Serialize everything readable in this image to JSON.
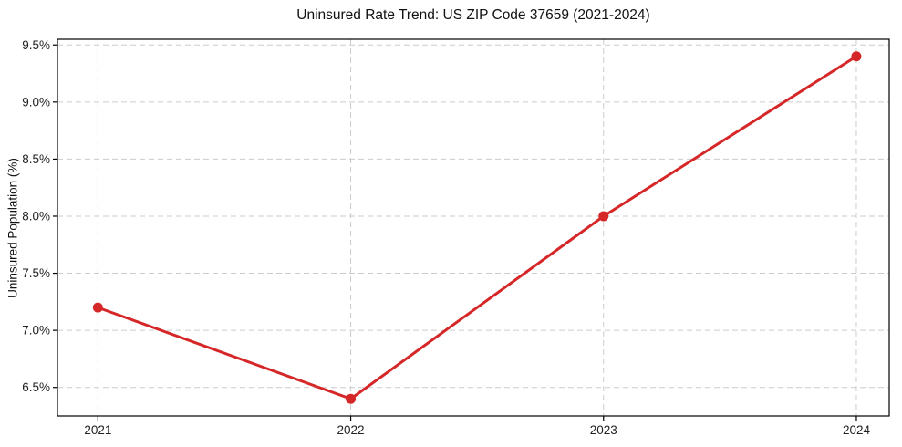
{
  "chart_data": {
    "type": "line",
    "title": "Uninsured Rate Trend: US ZIP Code 37659 (2021-2024)",
    "xlabel": "",
    "ylabel": "Uninsured Population (%)",
    "x": [
      2021,
      2022,
      2023,
      2024
    ],
    "values": [
      7.2,
      6.4,
      8.0,
      9.4
    ],
    "xtick_labels": [
      "2021",
      "2022",
      "2023",
      "2024"
    ],
    "ytick_values": [
      6.5,
      7.0,
      7.5,
      8.0,
      8.5,
      9.0,
      9.5
    ],
    "ytick_labels": [
      "6.5%",
      "7.0%",
      "7.5%",
      "8.0%",
      "8.5%",
      "9.0%",
      "9.5%"
    ],
    "xlim": [
      2020.84,
      2024.13
    ],
    "ylim": [
      6.25,
      9.55
    ],
    "grid": true,
    "legend": false,
    "marker": "circle",
    "colors": {
      "line": "#d62728",
      "marker": "#d62728",
      "grid": "#cccccc",
      "spine": "#000000",
      "background": "#ffffff"
    }
  }
}
